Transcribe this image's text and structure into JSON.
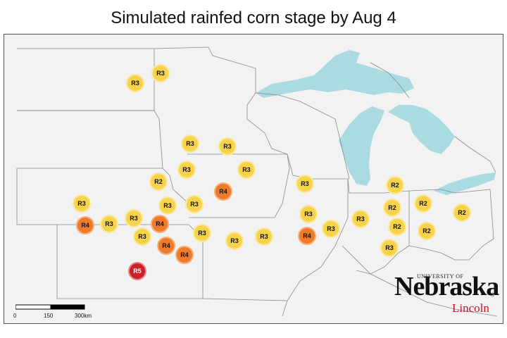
{
  "title": "Simulated rainfed corn stage by Aug 4",
  "colors": {
    "R2": "#f6d34a",
    "R3": "#f6d34a",
    "R4": "#ee7a2c",
    "R5": "#cc1f27",
    "R2_border": "#fbe89a",
    "R3_border": "#fbe89a",
    "R4_border": "#f8b07a",
    "R5_border": "#e8828a",
    "water": "#a9dbe0",
    "land": "#f2f2f2",
    "border_lines": "#8a8a8a"
  },
  "stations": [
    {
      "stage": "R3"
    },
    {
      "stage": "R3"
    },
    {
      "stage": "R3"
    },
    {
      "stage": "R3"
    },
    {
      "stage": "R3"
    },
    {
      "stage": "R3"
    },
    {
      "stage": "R2"
    },
    {
      "stage": "R4"
    },
    {
      "stage": "R3"
    },
    {
      "stage": "R3"
    },
    {
      "stage": "R3"
    },
    {
      "stage": "R3"
    },
    {
      "stage": "R3"
    },
    {
      "stage": "R4"
    },
    {
      "stage": "R3"
    },
    {
      "stage": "R4"
    },
    {
      "stage": "R3"
    },
    {
      "stage": "R4"
    },
    {
      "stage": "R4"
    },
    {
      "stage": "R3"
    },
    {
      "stage": "R3"
    },
    {
      "stage": "R3"
    },
    {
      "stage": "R5"
    },
    {
      "stage": "R3"
    },
    {
      "stage": "R4"
    },
    {
      "stage": "R3"
    },
    {
      "stage": "R3"
    },
    {
      "stage": "R2"
    },
    {
      "stage": "R2"
    },
    {
      "stage": "R2"
    },
    {
      "stage": "R2"
    },
    {
      "stage": "R2"
    },
    {
      "stage": "R2"
    },
    {
      "stage": "R3"
    }
  ],
  "scale": {
    "labels": [
      "0",
      "150",
      "300km"
    ]
  },
  "logo": {
    "university": "UNIVERSITY OF",
    "name": "Nebraska",
    "campus": "Lincoln",
    "registered": "®"
  }
}
